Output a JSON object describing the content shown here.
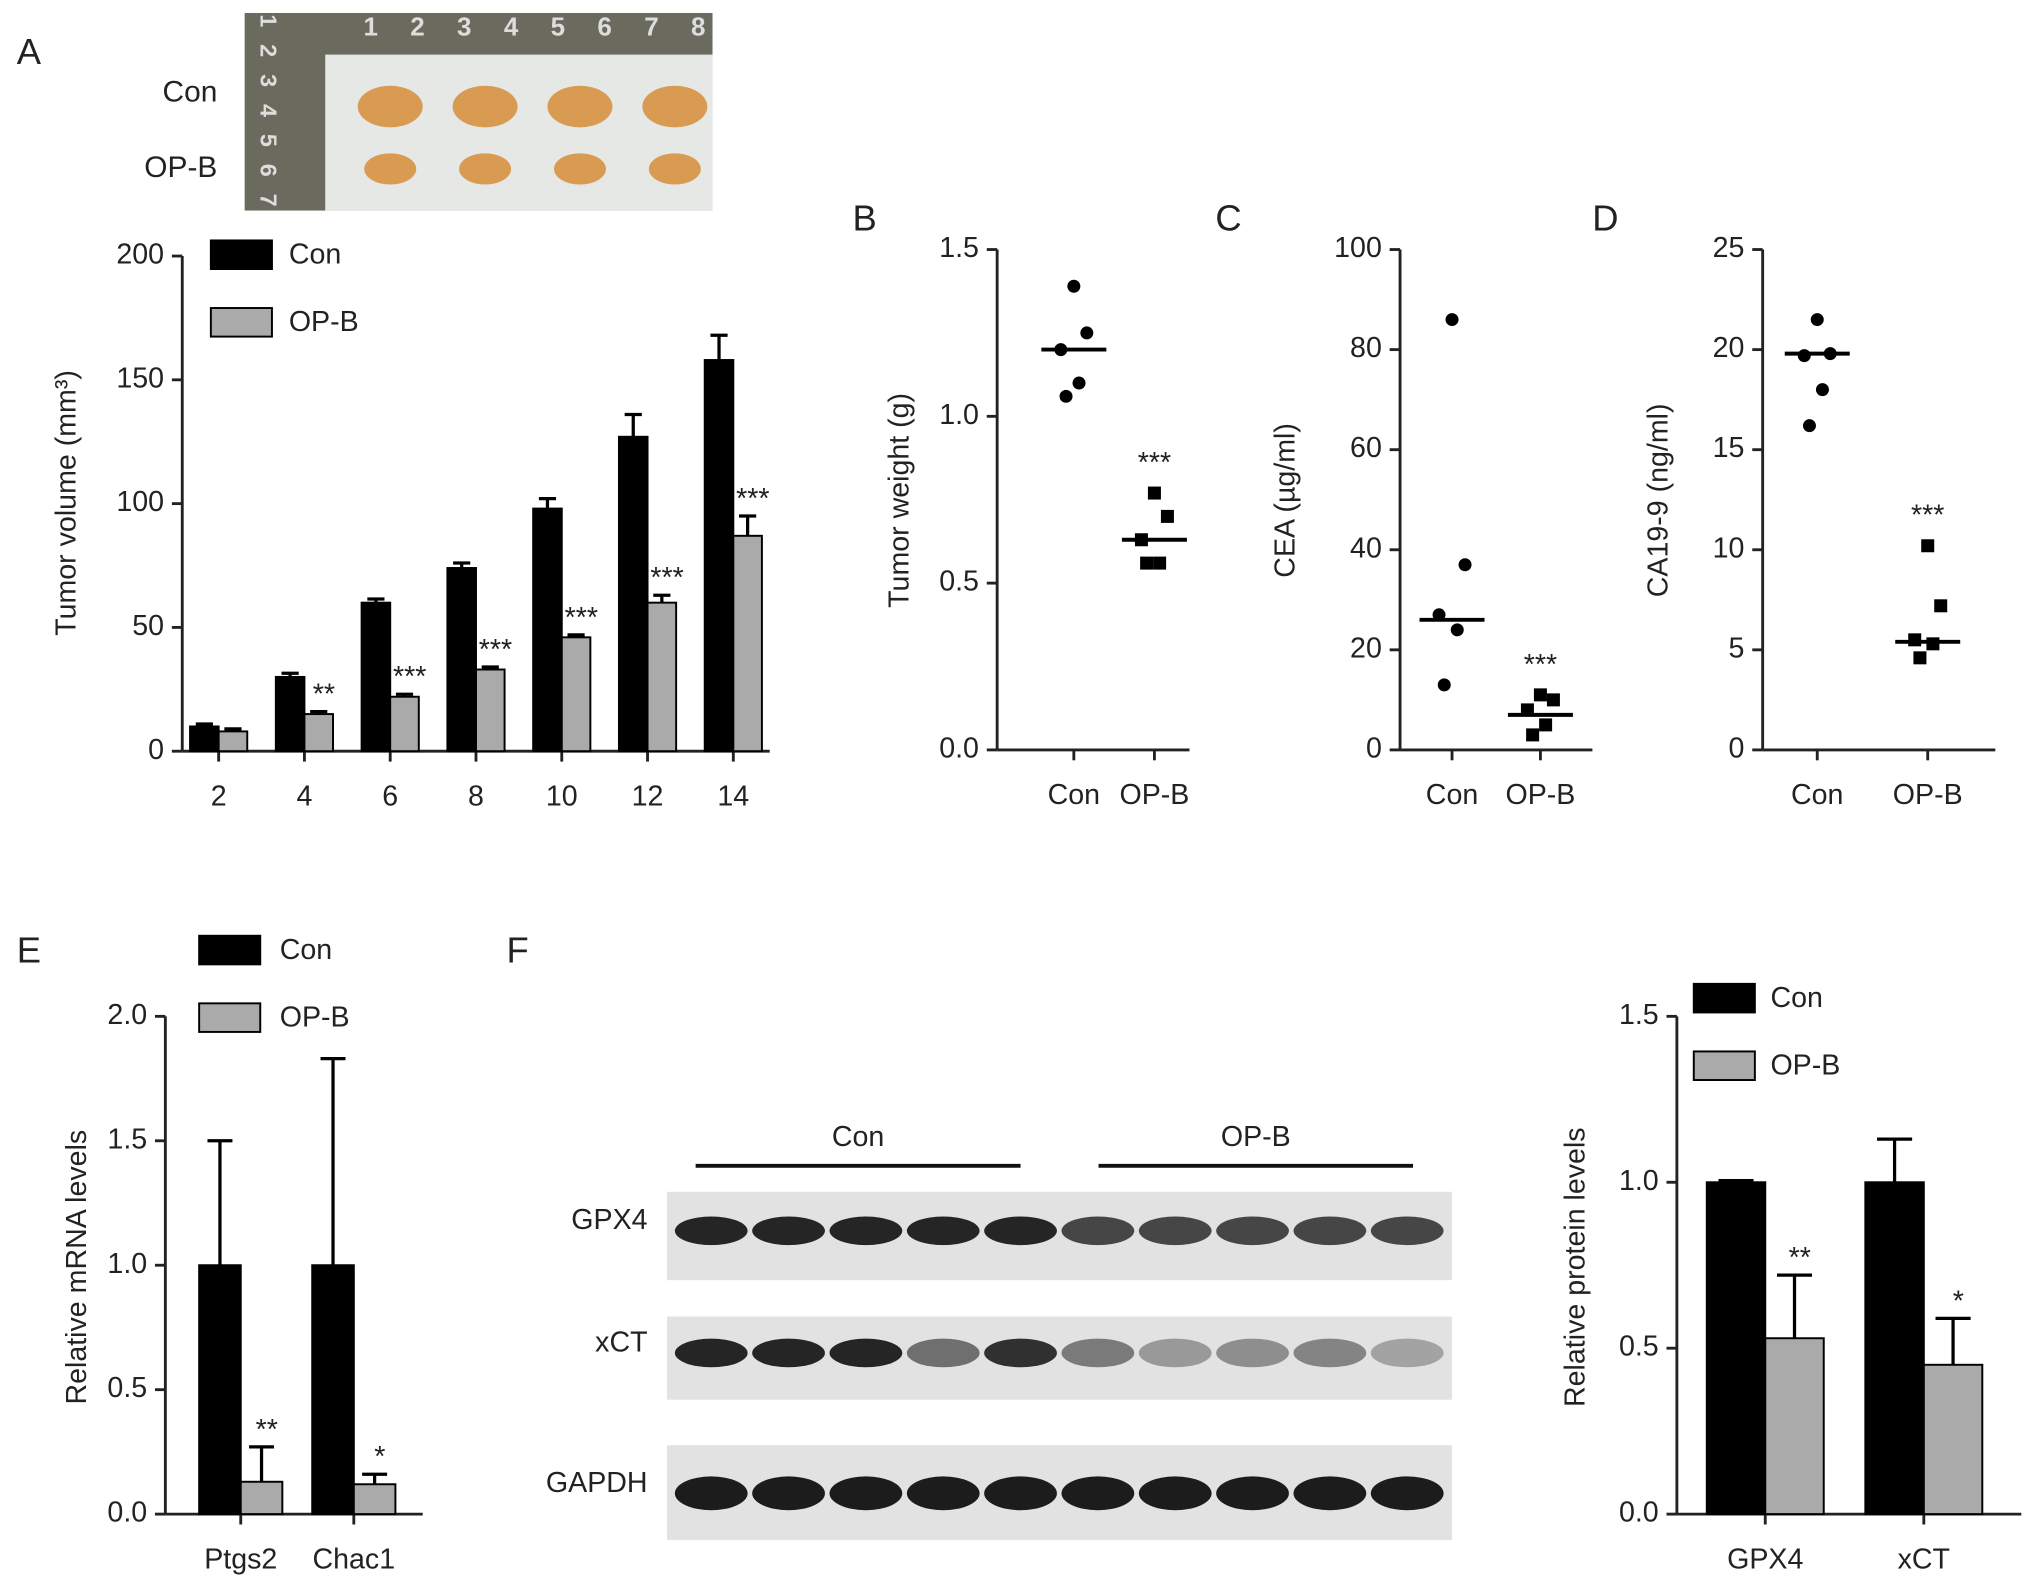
{
  "photo": {
    "row_labels": [
      "Con",
      "OP-B"
    ],
    "ruler_top": [
      "1",
      "2",
      "3",
      "4",
      "5",
      "6",
      "7",
      "8"
    ],
    "ruler_side": [
      "1",
      "2",
      "3",
      "4",
      "5",
      "6",
      "7"
    ]
  },
  "blot": {
    "groups": [
      "Con",
      "OP-B"
    ],
    "rows": [
      "GPX4",
      "xCT",
      "GAPDH"
    ]
  },
  "chart_data": [
    {
      "panel": "A",
      "type": "bar",
      "ylabel": "Tumor volume (mm³)",
      "categories": [
        "2",
        "4",
        "6",
        "8",
        "10",
        "12",
        "14"
      ],
      "series": [
        {
          "name": "Con",
          "color": "#000000",
          "values": [
            10,
            30,
            60,
            74,
            98,
            127,
            158
          ],
          "errors": [
            1,
            1.5,
            1.5,
            2,
            4,
            9,
            10
          ]
        },
        {
          "name": "OP-B",
          "color": "#aaaaaa",
          "values": [
            8,
            15,
            22,
            33,
            46,
            60,
            87
          ],
          "errors": [
            1,
            1,
            1,
            1,
            1,
            3,
            8
          ],
          "annotations": [
            null,
            "**",
            "***",
            "***",
            "***",
            "***",
            "***"
          ]
        }
      ],
      "ylim": [
        0,
        200
      ],
      "yticks": [
        0,
        50,
        100,
        150,
        200
      ],
      "legend": "upper left"
    },
    {
      "panel": "B",
      "type": "dot",
      "ylabel": "Tumor weight (g)",
      "categories": [
        "Con",
        "OP-B"
      ],
      "groups": [
        {
          "marker": "circle",
          "color": "#000000",
          "values": [
            1.39,
            1.25,
            1.2,
            1.1,
            1.06
          ],
          "median": 1.2,
          "annotation": null
        },
        {
          "marker": "square",
          "color": "#000000",
          "values": [
            0.77,
            0.7,
            0.63,
            0.56,
            0.56
          ],
          "median": 0.63,
          "annotation": "***"
        }
      ],
      "ylim": [
        0,
        1.5
      ],
      "yticks": [
        {
          "value": 0,
          "label": "0.0"
        },
        0.5,
        {
          "value": 1,
          "label": "1.0"
        },
        1.5
      ]
    },
    {
      "panel": "C",
      "type": "dot",
      "ylabel": "CEA (µg/ml)",
      "categories": [
        "Con",
        "OP-B"
      ],
      "groups": [
        {
          "marker": "circle",
          "color": "#000000",
          "values": [
            86,
            37,
            27,
            24,
            13
          ],
          "median": 26,
          "annotation": null
        },
        {
          "marker": "square",
          "color": "#000000",
          "values": [
            11,
            10,
            8,
            5,
            3
          ],
          "median": 7,
          "annotation": "***"
        }
      ],
      "ylim": [
        0,
        100
      ],
      "yticks": [
        0,
        20,
        40,
        60,
        80,
        100
      ]
    },
    {
      "panel": "D",
      "type": "dot",
      "ylabel": "CA19-9 (ng/ml)",
      "categories": [
        "Con",
        "OP-B"
      ],
      "groups": [
        {
          "marker": "circle",
          "color": "#000000",
          "values": [
            21.5,
            19.8,
            19.7,
            18,
            16.2
          ],
          "median": 19.8,
          "annotation": null
        },
        {
          "marker": "square",
          "color": "#000000",
          "values": [
            10.2,
            7.2,
            5.5,
            5.3,
            4.6
          ],
          "median": 5.4,
          "annotation": "***"
        }
      ],
      "ylim": [
        0,
        25
      ],
      "yticks": [
        0,
        5,
        10,
        15,
        20,
        25
      ]
    },
    {
      "panel": "E",
      "type": "bar",
      "ylabel": "Relative mRNA levels",
      "categories": [
        "Ptgs2",
        "Chac1"
      ],
      "series": [
        {
          "name": "Con",
          "color": "#000000",
          "values": [
            1,
            1
          ],
          "errors": [
            0.5,
            0.83
          ]
        },
        {
          "name": "OP-B",
          "color": "#aaaaaa",
          "values": [
            0.13,
            0.12
          ],
          "errors": [
            0.14,
            0.04
          ],
          "annotations": [
            "**",
            "*"
          ]
        }
      ],
      "ylim": [
        0,
        2
      ],
      "yticks": [
        {
          "value": 0,
          "label": "0.0"
        },
        0.5,
        {
          "value": 1,
          "label": "1.0"
        },
        1.5,
        {
          "value": 2,
          "label": "2.0"
        }
      ],
      "legend": "upper left"
    },
    {
      "panel": "F",
      "type": "bar",
      "ylabel": "Relative protein levels",
      "categories": [
        "GPX4",
        "xCT"
      ],
      "series": [
        {
          "name": "Con",
          "color": "#000000",
          "values": [
            1,
            1
          ],
          "errors": [
            0.005,
            0.13
          ]
        },
        {
          "name": "OP-B",
          "color": "#aaaaaa",
          "values": [
            0.53,
            0.45
          ],
          "errors": [
            0.19,
            0.14
          ],
          "annotations": [
            "**",
            "*"
          ]
        }
      ],
      "ylim": [
        0,
        1.5
      ],
      "yticks": [
        {
          "value": 0,
          "label": "0.0"
        },
        0.5,
        {
          "value": 1,
          "label": "1.0"
        },
        1.5
      ],
      "legend": "upper left"
    }
  ]
}
